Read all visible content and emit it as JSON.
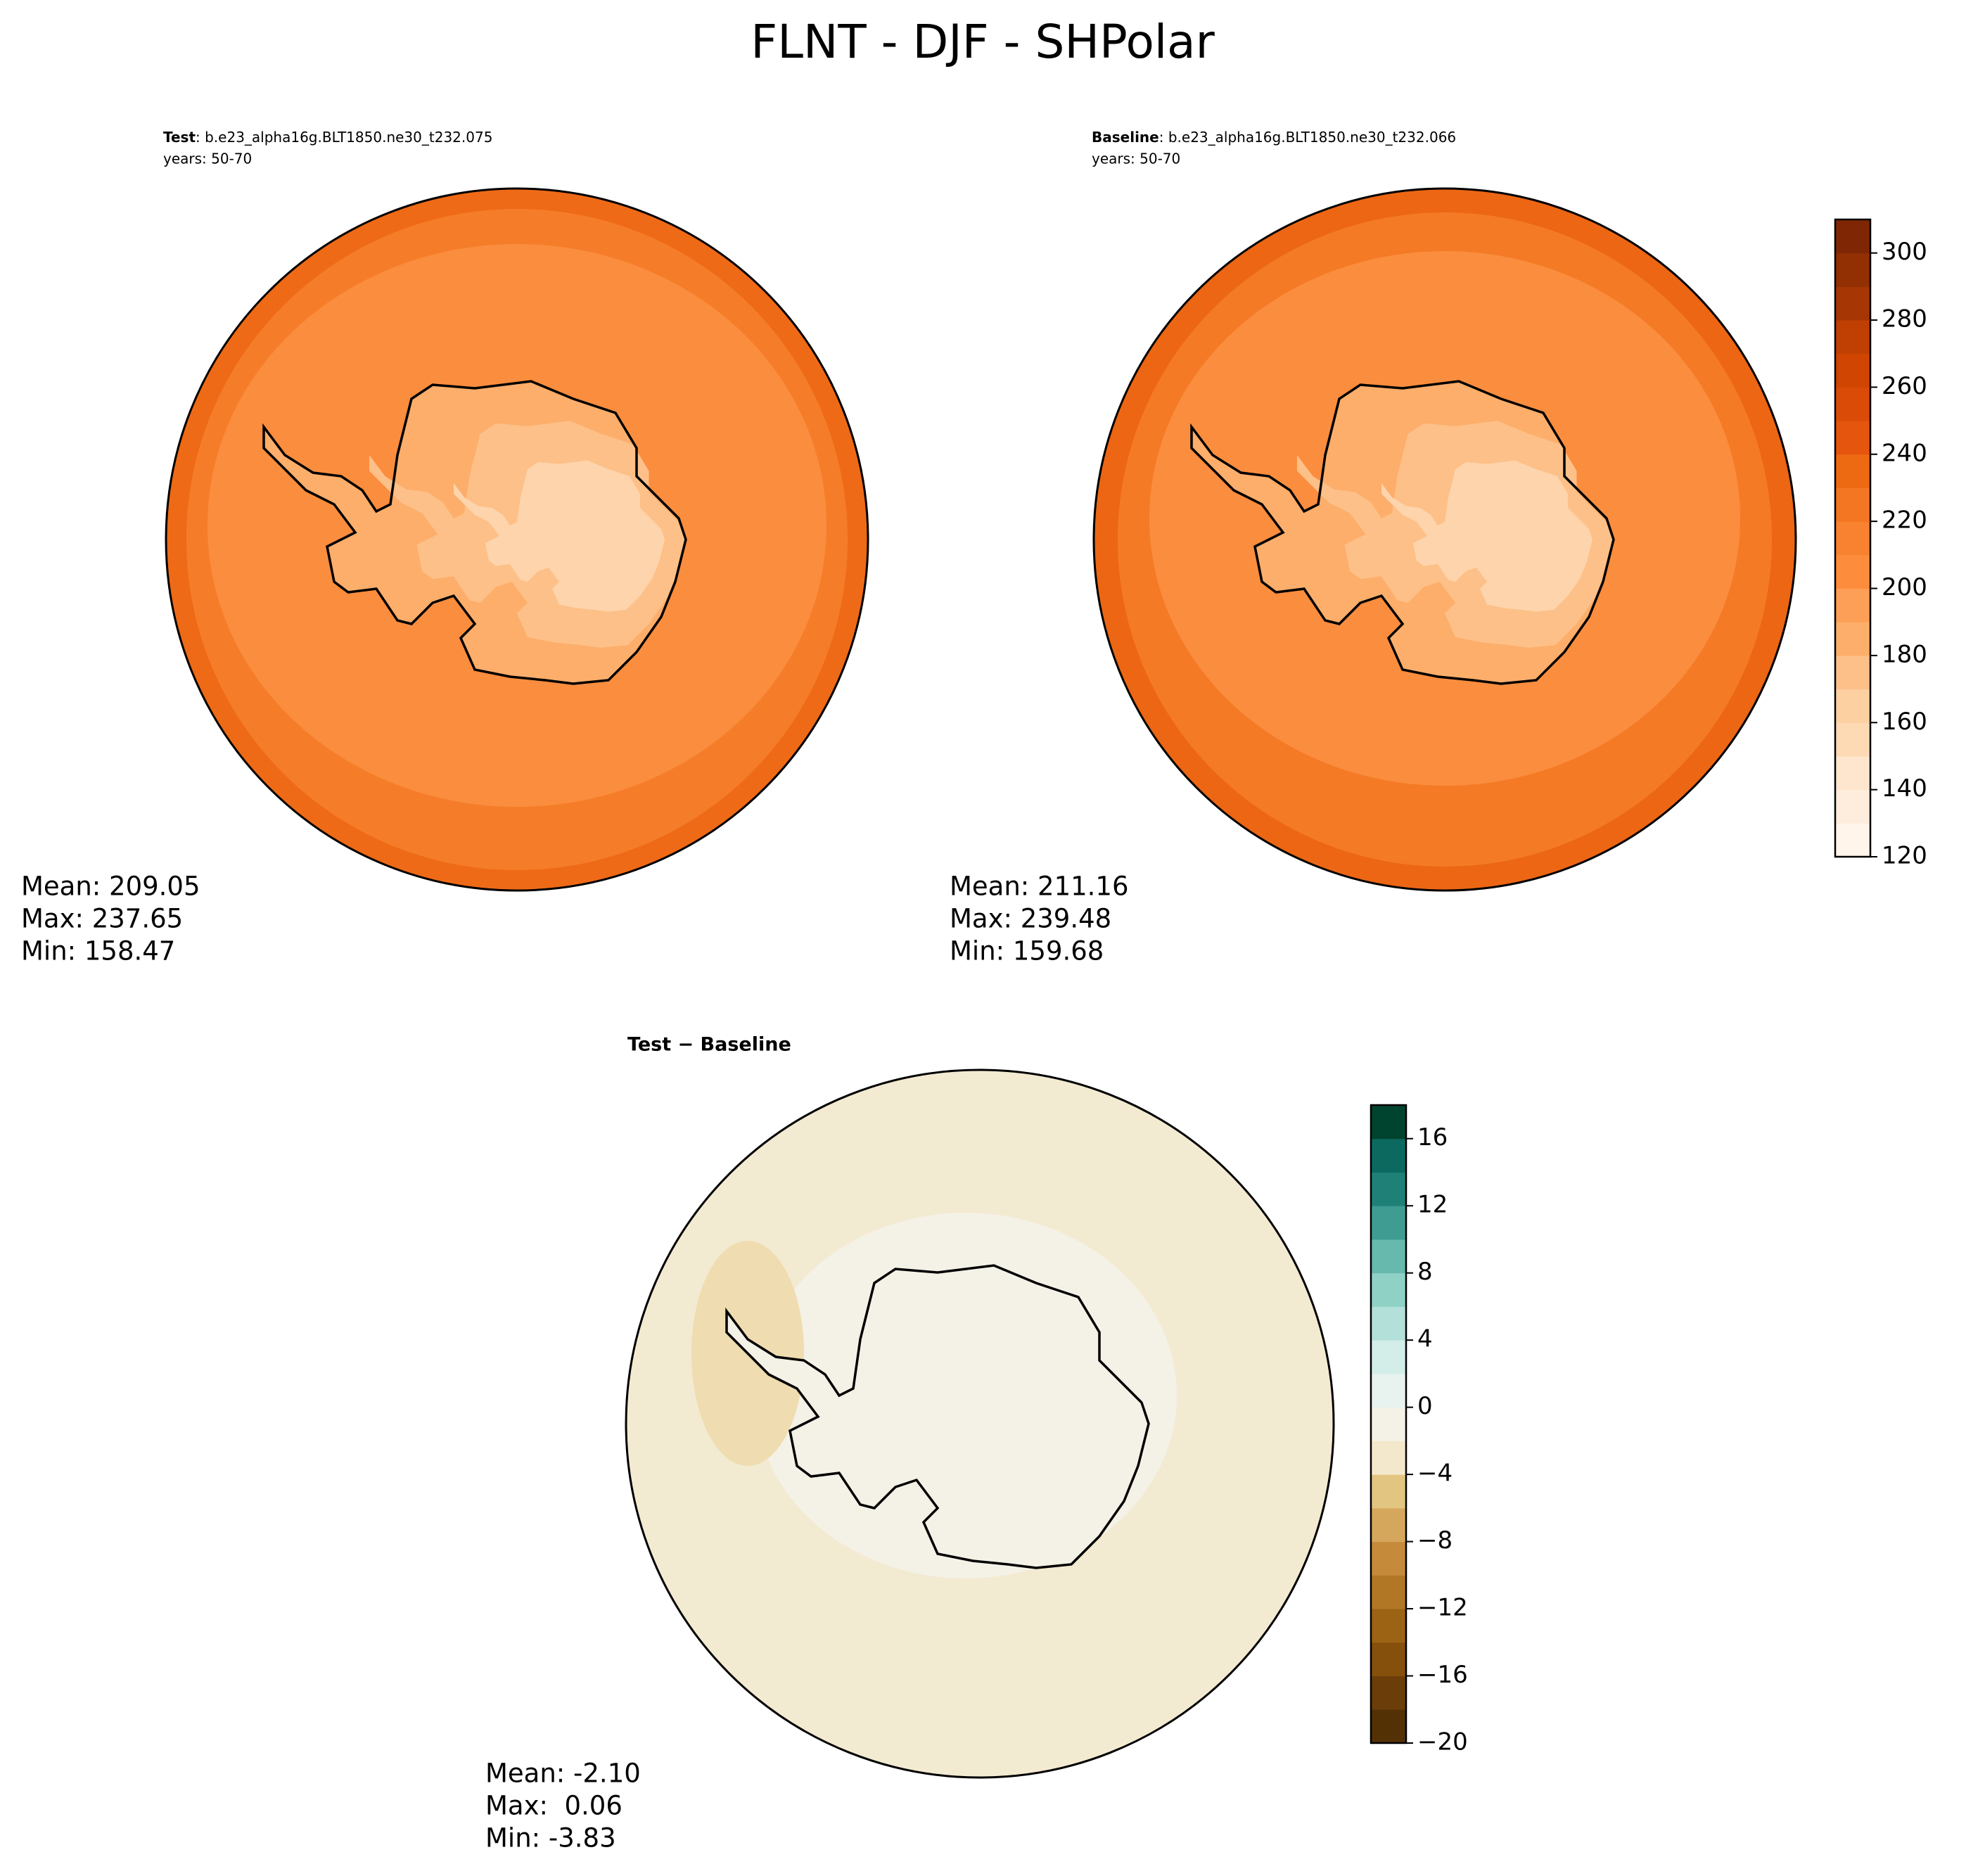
{
  "title": "FLNT - DJF - SHPolar",
  "panels": [
    {
      "name": "Test",
      "case": ": b.e23_alpha16g.BLT1850.ne30_t232.075",
      "years": "years: 50-70",
      "stats": [
        "Mean: 209.05",
        "Max: 237.65",
        "Min: 158.47"
      ]
    },
    {
      "name": "Baseline",
      "case": ": b.e23_alpha16g.BLT1850.ne30_t232.066",
      "years": "years: 50-70",
      "stats": [
        "Mean: 211.16",
        "Max: 239.48",
        "Min: 159.68"
      ]
    },
    {
      "name": "Test − Baseline",
      "stats": [
        "Mean: -2.10",
        "Max:  0.06",
        "Min: -3.83"
      ]
    }
  ],
  "colorbars": [
    {
      "lim": [
        120,
        310
      ],
      "ticks": [
        120,
        140,
        160,
        180,
        200,
        220,
        240,
        260,
        280,
        300
      ],
      "colors": [
        "#fff5eb",
        "#feeddc",
        "#fee6ce",
        "#fdd9b4",
        "#fdd0a2",
        "#fdc088",
        "#fdae6b",
        "#fd9f56",
        "#fd8d3c",
        "#f98230",
        "#f57622",
        "#ed6a13",
        "#e6550d",
        "#da4b08",
        "#d04501",
        "#c03f02",
        "#a63603",
        "#922f03",
        "#7f2704"
      ]
    },
    {
      "lim": [
        -20,
        18
      ],
      "ticks": [
        {
          "value": -20,
          "label": "−20"
        },
        {
          "value": -16,
          "label": "−16"
        },
        {
          "value": -12,
          "label": "−12"
        },
        {
          "value": -8,
          "label": "−8"
        },
        {
          "value": -4,
          "label": "−4"
        },
        0,
        4,
        8,
        12,
        16
      ],
      "colors": [
        "#543005",
        "#6a3d09",
        "#84500b",
        "#9c6315",
        "#b27724",
        "#c58b3a",
        "#d5a75c",
        "#e3c582",
        "#f4e8cc",
        "#f4f1e6",
        "#e8f2ef",
        "#d3ede8",
        "#b3e1da",
        "#8fd1c5",
        "#67b8ad",
        "#3f9c92",
        "#1f8078",
        "#0b6960",
        "#00432f"
      ]
    }
  ]
}
